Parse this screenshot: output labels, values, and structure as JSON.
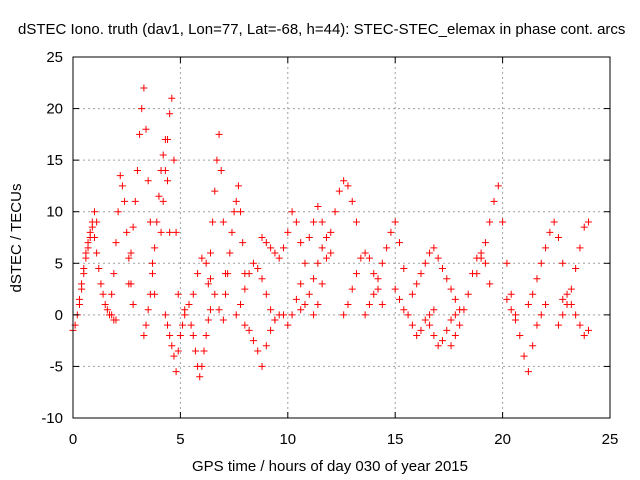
{
  "chart_data": {
    "type": "scatter",
    "title": "dSTEC Iono. truth (dav1, Lon=77, Lat=-68, h=44): STEC-STEC_elemax in phase cont. arcs",
    "xlabel": "GPS time / hours of day 030 of year 2015",
    "ylabel": "dSTEC  / TECUs",
    "xlim": [
      0,
      25
    ],
    "ylim": [
      -10,
      25
    ],
    "x_ticks": [
      0,
      5,
      10,
      15,
      20,
      25
    ],
    "y_ticks": [
      -10,
      -5,
      0,
      5,
      10,
      15,
      20,
      25
    ],
    "x_tick_labels": [
      "0",
      "5",
      "10",
      "15",
      "20",
      "25"
    ],
    "y_tick_labels": [
      "-10",
      "-5",
      "0",
      "5",
      "10",
      "15",
      "20",
      "25"
    ],
    "grid": true,
    "marker": "+",
    "series_color": "#ff0000",
    "series": [
      {
        "arcs": [
          {
            "x": [
              0.0,
              0.1,
              0.2,
              0.3,
              0.4,
              0.5,
              0.6,
              0.7,
              0.8,
              0.9,
              1.0,
              1.1,
              1.2,
              1.3,
              1.4,
              1.5,
              1.6,
              1.7,
              1.8,
              1.9,
              2.0
            ],
            "y": [
              -1.5,
              -1.0,
              0.0,
              1.5,
              3.0,
              4.5,
              6.0,
              7.0,
              8.0,
              9.0,
              7.5,
              6.0,
              4.5,
              3.0,
              2.0,
              1.0,
              0.5,
              0.0,
              0.0,
              -0.5,
              -0.5
            ]
          },
          {
            "x": [
              0.3,
              0.4,
              0.5,
              0.6,
              0.7,
              0.8,
              0.9,
              1.0,
              1.1
            ],
            "y": [
              1.0,
              2.5,
              4.0,
              5.5,
              6.5,
              7.5,
              8.5,
              10.0,
              9.0
            ]
          },
          {
            "x": [
              1.8,
              1.9,
              2.0,
              2.1,
              2.2,
              2.3,
              2.4,
              2.5,
              2.6,
              2.7,
              2.8
            ],
            "y": [
              2.0,
              4.0,
              7.0,
              10.0,
              13.5,
              12.5,
              11.0,
              8.0,
              5.5,
              3.0,
              1.0
            ]
          },
          {
            "x": [
              2.6,
              2.7,
              2.8,
              2.9,
              3.0,
              3.1,
              3.2,
              3.3,
              3.4,
              3.5,
              3.6,
              3.7,
              3.8
            ],
            "y": [
              3.0,
              6.0,
              8.5,
              11.0,
              14.0,
              17.5,
              20.0,
              22.0,
              18.0,
              13.0,
              9.0,
              5.0,
              2.0
            ]
          },
          {
            "x": [
              3.3,
              3.4,
              3.5,
              3.6,
              3.7,
              3.8,
              3.9,
              4.0,
              4.1,
              4.2,
              4.3,
              4.4,
              4.5
            ],
            "y": [
              -2.0,
              -1.0,
              0.5,
              2.0,
              4.0,
              6.5,
              9.0,
              11.5,
              14.0,
              15.5,
              17.0,
              13.0,
              8.0
            ]
          },
          {
            "x": [
              4.1,
              4.2,
              4.3,
              4.4,
              4.5,
              4.6,
              4.7,
              4.8,
              4.9
            ],
            "y": [
              8.0,
              11.0,
              14.0,
              17.0,
              19.5,
              21.0,
              15.0,
              8.0,
              2.0
            ]
          },
          {
            "x": [
              4.3,
              4.4,
              4.5,
              4.6,
              4.7,
              4.8,
              4.9,
              5.0,
              5.1,
              5.2
            ],
            "y": [
              0.0,
              -1.0,
              -2.0,
              -3.0,
              -4.0,
              -5.5,
              -3.5,
              -2.0,
              -1.0,
              0.0
            ]
          },
          {
            "x": [
              5.2,
              5.4,
              5.6,
              5.8,
              6.0,
              6.2,
              6.4,
              6.6,
              6.8,
              7.0
            ],
            "y": [
              0.5,
              1.0,
              2.0,
              4.0,
              5.5,
              5.0,
              3.5,
              2.0,
              0.5,
              -0.5
            ]
          },
          {
            "x": [
              5.5,
              5.6,
              5.7,
              5.8,
              5.9,
              6.0,
              6.1,
              6.2,
              6.3,
              6.4
            ],
            "y": [
              -1.0,
              -2.0,
              -3.5,
              -5.0,
              -6.0,
              -5.0,
              -3.5,
              -2.0,
              -0.5,
              0.5
            ]
          },
          {
            "x": [
              6.3,
              6.4,
              6.5,
              6.6,
              6.7,
              6.8,
              6.9,
              7.0,
              7.1
            ],
            "y": [
              3.0,
              6.0,
              9.0,
              12.0,
              15.0,
              17.5,
              14.0,
              9.0,
              4.0
            ]
          },
          {
            "x": [
              7.1,
              7.2,
              7.3,
              7.4,
              7.5,
              7.6,
              7.7,
              7.8,
              7.9,
              8.0
            ],
            "y": [
              2.0,
              4.0,
              6.0,
              8.0,
              10.0,
              11.0,
              12.5,
              10.0,
              7.0,
              4.0
            ]
          },
          {
            "x": [
              7.6,
              7.8,
              8.0,
              8.2,
              8.4,
              8.6,
              8.8,
              9.0,
              9.2,
              9.4
            ],
            "y": [
              0.0,
              1.0,
              2.5,
              4.0,
              5.0,
              4.5,
              3.5,
              2.0,
              0.5,
              -0.5
            ]
          },
          {
            "x": [
              8.0,
              8.2,
              8.4,
              8.6,
              8.8,
              9.0,
              9.2,
              9.4,
              9.6,
              9.8
            ],
            "y": [
              -1.0,
              -1.5,
              -2.5,
              -3.5,
              -5.0,
              -3.0,
              -1.5,
              -0.5,
              0.0,
              0.0
            ]
          },
          {
            "x": [
              8.8,
              9.0,
              9.2,
              9.4,
              9.6,
              9.8,
              10.0,
              10.2,
              10.4,
              10.6
            ],
            "y": [
              7.5,
              7.0,
              6.5,
              6.0,
              5.5,
              6.5,
              8.0,
              10.0,
              9.0,
              7.0
            ]
          },
          {
            "x": [
              10.0,
              10.2,
              10.4,
              10.6,
              10.8,
              11.0,
              11.2,
              11.4,
              11.6
            ],
            "y": [
              -1.0,
              0.0,
              1.5,
              3.0,
              5.0,
              7.5,
              9.0,
              10.5,
              9.0
            ]
          },
          {
            "x": [
              10.6,
              10.8,
              11.0,
              11.2,
              11.4,
              11.6,
              11.8,
              12.0
            ],
            "y": [
              0.5,
              1.0,
              2.0,
              3.5,
              5.0,
              6.5,
              7.5,
              6.0
            ]
          },
          {
            "x": [
              11.2,
              11.4,
              11.6,
              11.8,
              12.0,
              12.2,
              12.4,
              12.6,
              12.8,
              13.0,
              13.2
            ],
            "y": [
              0.0,
              1.0,
              3.0,
              5.5,
              8.0,
              10.0,
              12.0,
              13.0,
              12.5,
              11.0,
              9.0
            ]
          },
          {
            "x": [
              12.6,
              12.8,
              13.0,
              13.2,
              13.4,
              13.6,
              13.8,
              14.0,
              14.2,
              14.4
            ],
            "y": [
              0.0,
              1.0,
              2.5,
              4.0,
              5.5,
              6.0,
              5.5,
              4.0,
              2.5,
              1.0
            ]
          },
          {
            "x": [
              13.6,
              13.8,
              14.0,
              14.2,
              14.4,
              14.6,
              14.8,
              15.0,
              15.2,
              15.4
            ],
            "y": [
              0.0,
              1.0,
              2.0,
              3.5,
              5.0,
              6.5,
              8.0,
              9.0,
              7.0,
              4.5
            ]
          },
          {
            "x": [
              15.0,
              15.2,
              15.4,
              15.6,
              15.8,
              16.0,
              16.2,
              16.4,
              16.6,
              16.8
            ],
            "y": [
              2.5,
              1.5,
              0.5,
              0.0,
              -1.0,
              -2.0,
              -1.5,
              -0.5,
              0.0,
              0.5
            ]
          },
          {
            "x": [
              15.8,
              16.0,
              16.2,
              16.4,
              16.6,
              16.8,
              17.0,
              17.2,
              17.4,
              17.6,
              17.8
            ],
            "y": [
              2.0,
              3.0,
              4.0,
              5.0,
              6.0,
              6.5,
              5.5,
              4.5,
              3.5,
              2.5,
              1.5
            ]
          },
          {
            "x": [
              16.6,
              16.8,
              17.0,
              17.2,
              17.4,
              17.6,
              17.8,
              18.0
            ],
            "y": [
              -1.0,
              -2.0,
              -3.0,
              -2.5,
              -1.5,
              -0.5,
              0.0,
              0.5
            ]
          },
          {
            "x": [
              17.6,
              17.8,
              18.0,
              18.2,
              18.4,
              18.6,
              18.8,
              19.0,
              19.2,
              19.4
            ],
            "y": [
              -3.0,
              -2.0,
              -1.0,
              0.5,
              2.0,
              4.0,
              5.5,
              6.0,
              5.0,
              3.0
            ]
          },
          {
            "x": [
              18.8,
              19.0,
              19.2,
              19.4,
              19.6,
              19.8,
              20.0,
              20.2,
              20.4,
              20.6
            ],
            "y": [
              4.0,
              5.5,
              7.0,
              9.0,
              11.0,
              12.5,
              9.0,
              5.0,
              2.0,
              0.0
            ]
          },
          {
            "x": [
              20.2,
              20.4,
              20.6,
              20.8,
              21.0,
              21.2,
              21.4,
              21.6,
              21.8,
              22.0
            ],
            "y": [
              1.5,
              0.5,
              -0.5,
              -2.0,
              -4.0,
              -5.5,
              -3.0,
              -1.0,
              0.0,
              1.0
            ]
          },
          {
            "x": [
              21.2,
              21.4,
              21.6,
              21.8,
              22.0,
              22.2,
              22.4,
              22.6,
              22.8
            ],
            "y": [
              1.0,
              2.0,
              3.5,
              5.0,
              6.5,
              8.0,
              9.0,
              7.5,
              5.0
            ]
          },
          {
            "x": [
              22.6,
              22.8,
              23.0,
              23.2,
              23.4,
              23.6,
              23.8,
              24.0
            ],
            "y": [
              -1.0,
              0.0,
              1.0,
              2.5,
              4.5,
              6.5,
              8.5,
              9.0
            ]
          },
          {
            "x": [
              22.8,
              23.0,
              23.2,
              23.4,
              23.6,
              23.8,
              24.0
            ],
            "y": [
              1.5,
              2.0,
              1.0,
              0.0,
              -1.0,
              -2.0,
              -1.5
            ]
          }
        ]
      }
    ]
  }
}
